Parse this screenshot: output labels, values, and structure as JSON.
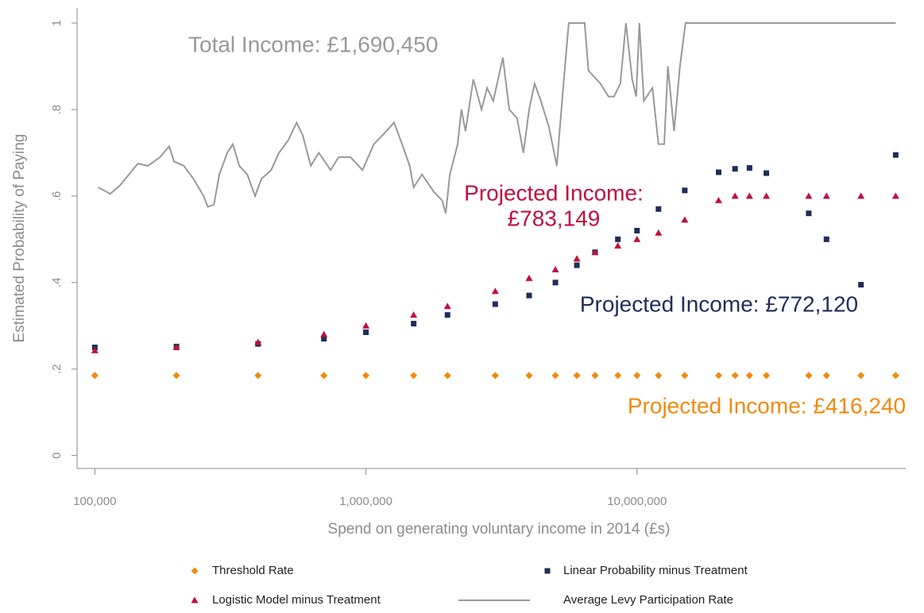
{
  "chart_data": {
    "type": "scatter",
    "xlabel": "Spend on generating voluntary income in 2014 (£s)",
    "ylabel": "Estimated Probability of Paying",
    "xscale": "log",
    "xlim": [
      86000,
      98000000
    ],
    "ylim": [
      -0.03,
      1.035
    ],
    "xticks": [
      {
        "value": 100000,
        "label": "100,000"
      },
      {
        "value": 1000000,
        "label": "1,000,000"
      },
      {
        "value": 10000000,
        "label": "10,000,000"
      }
    ],
    "yticks": [
      0,
      {
        "value": 0.2,
        "label": ".2"
      },
      {
        "value": 0.4,
        "label": ".4"
      },
      {
        "value": 0.6,
        "label": ".6"
      },
      {
        "value": 0.8,
        "label": ".8"
      },
      1
    ],
    "series": [
      {
        "name": "Threshold Rate",
        "color": "#f28a0c",
        "marker": "diamond",
        "x": [
          100000,
          200000,
          400000,
          700000,
          1000000,
          1500000,
          2000000,
          3000000,
          4000000,
          5000000,
          6000000,
          7000000,
          8500000,
          10000000,
          12000000,
          15000000,
          20000000,
          23000000,
          26000000,
          30000000,
          43000000,
          50000000,
          67000000,
          90000000
        ],
        "values": [
          0.185,
          0.185,
          0.185,
          0.185,
          0.185,
          0.185,
          0.185,
          0.185,
          0.185,
          0.185,
          0.185,
          0.185,
          0.185,
          0.185,
          0.185,
          0.185,
          0.185,
          0.185,
          0.185,
          0.185,
          0.185,
          0.185,
          0.185,
          0.185
        ]
      },
      {
        "name": "Linear Probability minus Treatment",
        "color": "#1f2d5a",
        "marker": "square",
        "x": [
          100000,
          200000,
          400000,
          700000,
          1000000,
          1500000,
          2000000,
          3000000,
          4000000,
          5000000,
          6000000,
          7000000,
          8500000,
          10000000,
          12000000,
          15000000,
          20000000,
          23000000,
          26000000,
          30000000,
          43000000,
          50000000,
          67000000,
          90000000
        ],
        "values": [
          0.25,
          0.252,
          0.258,
          0.27,
          0.285,
          0.305,
          0.325,
          0.35,
          0.37,
          0.4,
          0.44,
          0.47,
          0.5,
          0.52,
          0.57,
          0.613,
          0.655,
          0.663,
          0.665,
          0.653,
          0.56,
          0.5,
          0.395,
          0.695
        ]
      },
      {
        "name": "Logistic Model minus Treatment",
        "color": "#c0103c",
        "marker": "triangle",
        "x": [
          100000,
          200000,
          400000,
          700000,
          1000000,
          1500000,
          2000000,
          3000000,
          4000000,
          5000000,
          6000000,
          7000000,
          8500000,
          10000000,
          12000000,
          15000000,
          20000000,
          23000000,
          26000000,
          30000000,
          43000000,
          50000000,
          67000000,
          90000000
        ],
        "values": [
          0.243,
          0.25,
          0.262,
          0.28,
          0.3,
          0.325,
          0.345,
          0.38,
          0.41,
          0.43,
          0.455,
          0.47,
          0.485,
          0.5,
          0.515,
          0.545,
          0.59,
          0.6,
          0.6,
          0.6,
          0.6,
          0.6,
          0.6,
          0.6
        ]
      },
      {
        "name": "Average Levy Participation Rate",
        "color": "#999999",
        "marker": "line",
        "x": [
          103000,
          114000,
          124000,
          144000,
          157000,
          174000,
          188000,
          196000,
          213000,
          231000,
          252000,
          261000,
          275000,
          288000,
          308000,
          323000,
          341000,
          365000,
          390000,
          412000,
          447000,
          478000,
          518000,
          555000,
          585000,
          626000,
          670000,
          741000,
          793000,
          877000,
          971000,
          1070000,
          1190000,
          1270000,
          1360000,
          1450000,
          1500000,
          1610000,
          1780000,
          1910000,
          1970000,
          2040000,
          2180000,
          2250000,
          2330000,
          2490000,
          2670000,
          2800000,
          2950000,
          3200000,
          3380000,
          3610000,
          3810000,
          4000000,
          4190000,
          4420000,
          4730000,
          5060000,
          5340000,
          5600000,
          6410000,
          6620000,
          7330000,
          7850000,
          8220000,
          8680000,
          9100000,
          9600000,
          9930000,
          10200000,
          10600000,
          11400000,
          12000000,
          12600000,
          13000000,
          13700000,
          14400000,
          15100000,
          90000000
        ],
        "values": [
          0.62,
          0.605,
          0.625,
          0.675,
          0.67,
          0.69,
          0.715,
          0.68,
          0.67,
          0.64,
          0.6,
          0.575,
          0.58,
          0.65,
          0.7,
          0.72,
          0.67,
          0.65,
          0.6,
          0.64,
          0.66,
          0.7,
          0.73,
          0.77,
          0.74,
          0.67,
          0.7,
          0.66,
          0.69,
          0.69,
          0.66,
          0.72,
          0.75,
          0.77,
          0.72,
          0.67,
          0.62,
          0.65,
          0.61,
          0.59,
          0.56,
          0.65,
          0.72,
          0.8,
          0.75,
          0.87,
          0.8,
          0.85,
          0.82,
          0.92,
          0.8,
          0.78,
          0.7,
          0.8,
          0.86,
          0.82,
          0.76,
          0.67,
          0.85,
          1,
          1,
          0.89,
          0.86,
          0.83,
          0.83,
          0.86,
          1,
          0.87,
          0.83,
          1,
          0.82,
          0.85,
          0.72,
          0.72,
          0.9,
          0.75,
          0.9,
          1,
          1
        ]
      }
    ],
    "annotations": [
      {
        "lines": [
          "Total Income: £1,690,450"
        ],
        "color": "#999999"
      },
      {
        "lines": [
          "Projected Income:",
          "£783,149"
        ],
        "color": "#c0103c"
      },
      {
        "lines": [
          "Projected Income: £772,120"
        ],
        "color": "#1f2d5a"
      },
      {
        "lines": [
          "Projected Income: £416,240"
        ],
        "color": "#f28a0c"
      }
    ]
  }
}
